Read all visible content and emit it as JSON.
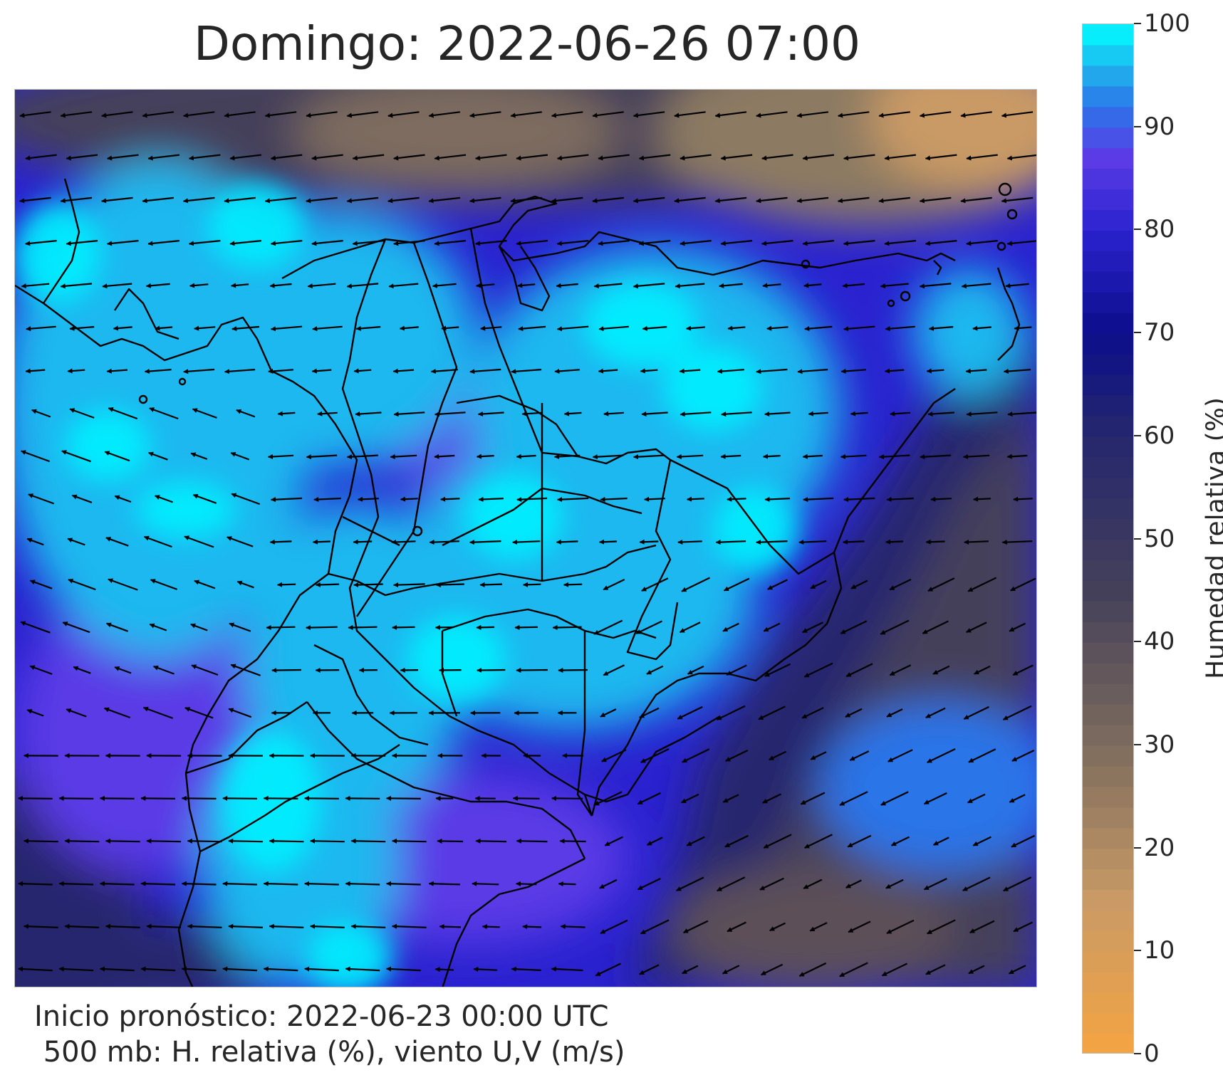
{
  "title": "Domingo: 2022-06-26 07:00",
  "footer": {
    "line1": "Inicio pronóstico: 2022-06-23 00:00 UTC",
    "line2": " 500 mb: H. relativa (%), viento U,V (m/s)"
  },
  "colorbar": {
    "label": "Humedad relativa (%)",
    "range": [
      0,
      100
    ],
    "ticks": [
      "0",
      "10",
      "20",
      "30",
      "40",
      "50",
      "60",
      "70",
      "80",
      "90",
      "100"
    ],
    "colors": {
      "0": "#f5a442",
      "15": "#c99a65",
      "30": "#7d6c5e",
      "45": "#45405a",
      "60": "#26276e",
      "70": "#0b0e8a",
      "80": "#2a22cf",
      "87": "#5a3be6",
      "92": "#2c74e8",
      "96": "#1fb8ef",
      "100": "#00ffff"
    }
  },
  "map": {
    "variable": "Humedad relativa 500 mb",
    "wind_direction": "predominantly easterly",
    "colors": {
      "coastline": "#000000",
      "arrow": "#000000"
    }
  }
}
